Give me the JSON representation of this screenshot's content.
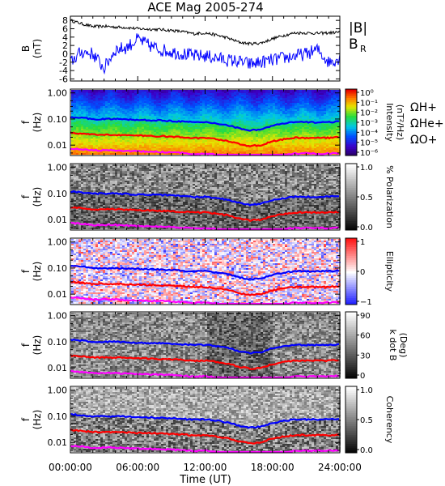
{
  "title": "ACE Mag 2005-274",
  "x_axis": {
    "label": "Time (UT)",
    "ticks": [
      "00:00:00",
      "06:00:00",
      "12:00:00",
      "18:00:00",
      "24:00:00"
    ],
    "range_hours": [
      0,
      24
    ]
  },
  "colors": {
    "total_field": "#000000",
    "radial_field": "#0000ff",
    "h_plus": "#0000ff",
    "he_plus": "#ff0000",
    "o_plus": "#ff00ff"
  },
  "chart_data": [
    {
      "type": "line",
      "panel": "field",
      "ylabel": "B\n(nT)",
      "ylabel_lines": [
        "B",
        "(nT)"
      ],
      "ylim": [
        -6.5,
        9
      ],
      "ytick_labels": [
        "8",
        "6",
        "4",
        "2",
        "0",
        "-2",
        "-4",
        "-6"
      ],
      "ytick_values": [
        8,
        6,
        4,
        2,
        0,
        -2,
        -4,
        -6
      ],
      "legend": [
        "|B|",
        "B"
      ],
      "legend_sub": [
        "",
        "R"
      ],
      "x_hours": [
        0,
        1,
        2,
        3,
        4,
        5,
        6,
        7,
        8,
        9,
        10,
        11,
        12,
        13,
        14,
        15,
        16,
        17,
        18,
        19,
        20,
        21,
        22,
        23,
        24
      ],
      "series": [
        {
          "name": "|B|",
          "values": [
            8.0,
            7.2,
            6.5,
            6.6,
            6.4,
            6.3,
            6.0,
            5.9,
            5.8,
            5.6,
            5.3,
            4.8,
            5.0,
            4.5,
            3.8,
            2.8,
            2.4,
            2.6,
            3.6,
            4.4,
            5.0,
            5.0,
            4.9,
            5.0,
            5.2
          ]
        },
        {
          "name": "B",
          "values": [
            -2.0,
            0.5,
            0.0,
            -3.5,
            1.0,
            1.5,
            3.5,
            2.0,
            1.0,
            0.5,
            0.0,
            -0.5,
            -0.5,
            -1.0,
            -1.5,
            -1.8,
            -2.5,
            -2.0,
            -1.5,
            -1.0,
            -0.5,
            0.0,
            1.0,
            -2.0,
            -1.0
          ]
        }
      ]
    },
    {
      "type": "heatmap",
      "panel": "intensity",
      "ylabel_lines": [
        "f",
        "(Hz)"
      ],
      "ytick_labels": [
        "1.00",
        "0.10",
        "0.01"
      ],
      "colorbar_label": "Intensity (nT²/Hz)",
      "colorbar_ticks": [
        "10⁰",
        "10⁻¹",
        "10⁻²",
        "10⁻³",
        "10⁻⁴",
        "10⁻⁵",
        "10⁻⁶"
      ],
      "legend": [
        "ΩH+",
        "ΩHe+",
        "ΩO+"
      ]
    },
    {
      "type": "heatmap",
      "panel": "polarization",
      "ylabel_lines": [
        "f",
        "(Hz)"
      ],
      "ytick_labels": [
        "1.00",
        "0.10",
        "0.01"
      ],
      "colorbar_label": "% Polarization",
      "colorbar_ticks": [
        "1.0",
        "0.5",
        "0.0"
      ]
    },
    {
      "type": "heatmap",
      "panel": "ellipticity",
      "ylabel_lines": [
        "f",
        "(Hz)"
      ],
      "ytick_labels": [
        "1.00",
        "0.10",
        "0.01"
      ],
      "colorbar_label": "Ellipticity",
      "colorbar_ticks": [
        "1",
        "0",
        "−1"
      ]
    },
    {
      "type": "heatmap",
      "panel": "kdotb",
      "ylabel_lines": [
        "f",
        "(Hz)"
      ],
      "ytick_labels": [
        "1.00",
        "0.10",
        "0.01"
      ],
      "colorbar_label": "k dot B (Deg)",
      "colorbar_label_lines": [
        "k dot B",
        "(Deg)"
      ],
      "colorbar_ticks": [
        "90",
        "60",
        "30",
        "0"
      ]
    },
    {
      "type": "heatmap",
      "panel": "coherency",
      "ylabel_lines": [
        "f",
        "(Hz)"
      ],
      "ytick_labels": [
        "1.00",
        "0.10",
        "0.01"
      ],
      "colorbar_label": "Coherency",
      "colorbar_ticks": [
        "1.0",
        "0.5",
        "0.0"
      ]
    },
    {
      "type": "line",
      "panel": "gyrofrequencies",
      "x_hours": [
        0,
        1,
        2,
        3,
        4,
        5,
        6,
        7,
        8,
        9,
        10,
        11,
        12,
        13,
        14,
        15,
        16,
        17,
        18,
        19,
        20,
        21,
        22,
        23,
        24
      ],
      "series": [
        {
          "name": "ΩH+",
          "values": [
            0.12,
            0.11,
            0.1,
            0.1,
            0.1,
            0.096,
            0.092,
            0.09,
            0.088,
            0.085,
            0.08,
            0.074,
            0.076,
            0.068,
            0.058,
            0.044,
            0.037,
            0.04,
            0.055,
            0.067,
            0.076,
            0.076,
            0.075,
            0.076,
            0.079
          ]
        },
        {
          "name": "ΩHe+",
          "values": [
            0.03,
            0.0275,
            0.025,
            0.025,
            0.025,
            0.024,
            0.023,
            0.0225,
            0.022,
            0.021,
            0.02,
            0.0185,
            0.019,
            0.017,
            0.0145,
            0.011,
            0.0093,
            0.01,
            0.0138,
            0.0168,
            0.019,
            0.019,
            0.0188,
            0.019,
            0.0198
          ]
        },
        {
          "name": "ΩO+",
          "values": [
            0.0075,
            0.0069,
            0.0063,
            0.0063,
            0.0063,
            0.006,
            0.0058,
            0.0056,
            0.0055,
            0.0053,
            0.005,
            0.0046,
            0.0048,
            0.0043,
            0.0036,
            0.0028,
            0.0023,
            0.0025,
            0.0034,
            0.0042,
            0.0048,
            0.0048,
            0.0047,
            0.0048,
            0.0049
          ]
        }
      ]
    }
  ]
}
